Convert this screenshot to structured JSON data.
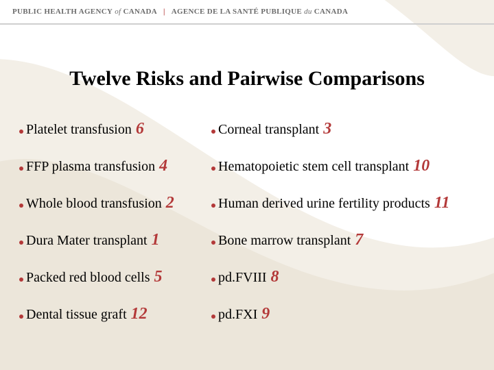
{
  "header": {
    "left": "PUBLIC HEALTH AGENCY",
    "left_of": "of",
    "left_country": "CANADA",
    "right": "AGENCE DE LA SANTÉ PUBLIQUE",
    "right_du": "du",
    "right_country": "CANADA"
  },
  "title": "Twelve Risks and Pairwise Comparisons",
  "colors": {
    "bullet": "#b33939",
    "number": "#b33939",
    "swoosh_light": "#f3efe7",
    "swoosh_mid": "#ece6da",
    "rule": "#cfcfcf",
    "bg": "#ffffff"
  },
  "rows": [
    {
      "left_label": "Platelet transfusion",
      "left_num": "6",
      "right_label": "Corneal transplant",
      "right_num": "3"
    },
    {
      "left_label": "FFP plasma transfusion",
      "left_num": "4",
      "right_label": "Hematopoietic stem cell transplant",
      "right_num": "10"
    },
    {
      "left_label": "Whole blood transfusion",
      "left_num": "2",
      "right_label": "Human derived urine fertility products",
      "right_num": "11"
    },
    {
      "left_label": "Dura Mater transplant",
      "left_num": "1",
      "right_label": "Bone marrow transplant",
      "right_num": "7"
    },
    {
      "left_label": "Packed red blood cells",
      "left_num": "5",
      "right_label": "pd.FVIII",
      "right_num": "8"
    },
    {
      "left_label": "Dental tissue graft",
      "left_num": "12",
      "right_label": "pd.FXI",
      "right_num": "9"
    }
  ]
}
